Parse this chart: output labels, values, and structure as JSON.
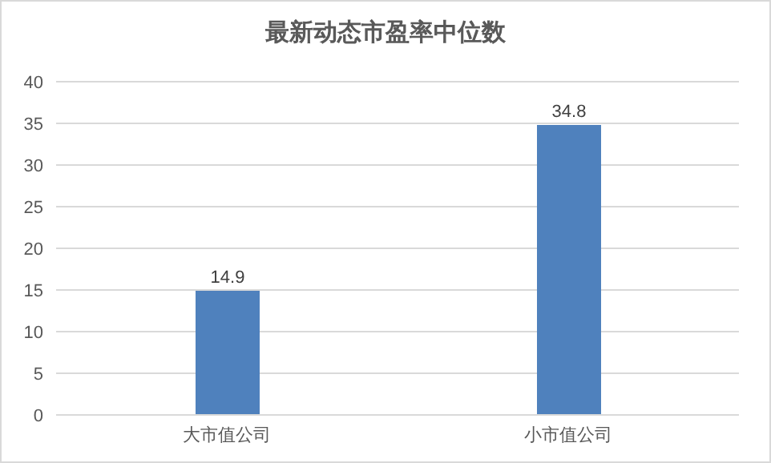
{
  "chart_data": {
    "type": "bar",
    "title": "最新动态市盈率中位数",
    "categories": [
      "大市值公司",
      "小市值公司"
    ],
    "values": [
      14.9,
      34.8
    ],
    "color": "#4f81bd",
    "ylim": [
      0,
      40
    ],
    "yticks": [
      0,
      5,
      10,
      15,
      20,
      25,
      30,
      35,
      40
    ],
    "grid": "y",
    "data_labels": true
  }
}
